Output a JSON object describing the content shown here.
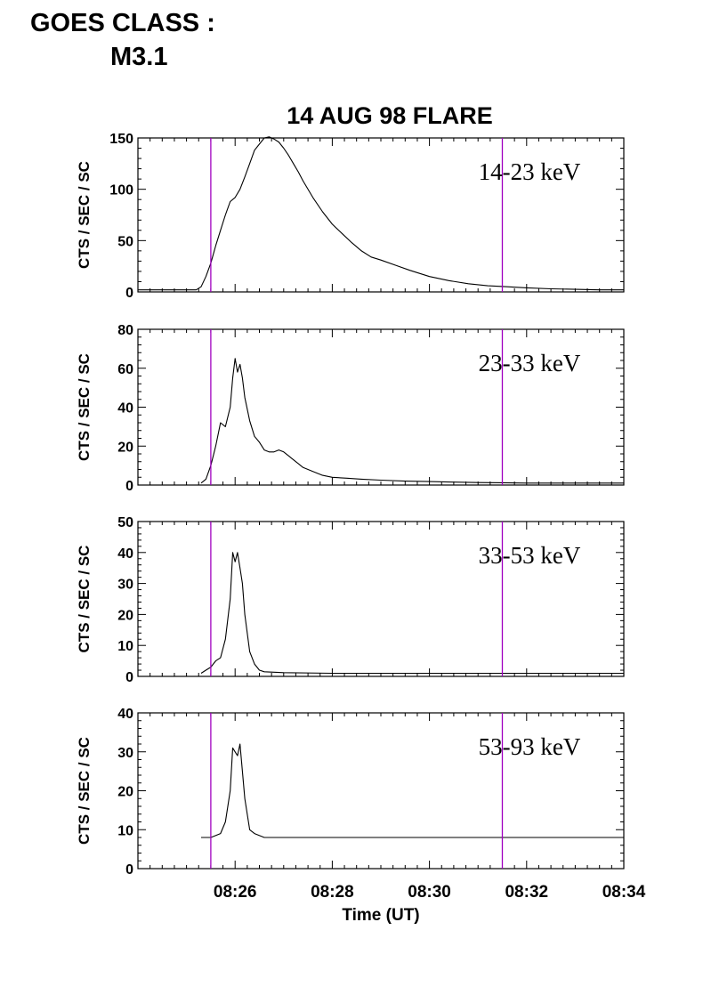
{
  "header": {
    "line1": "GOES CLASS :",
    "line2": "M3.1"
  },
  "chart_data": {
    "type": "line",
    "title": "14 AUG 98 FLARE",
    "xlabel": "Time (UT)",
    "ylabel": "CTS / SEC / SC",
    "x_unit": "minutes past 08:00 UT",
    "xlim": [
      24.0,
      34.0
    ],
    "x_ticks": [
      26,
      28,
      30,
      32,
      34
    ],
    "x_tick_labels": [
      "08:26",
      "08:28",
      "08:30",
      "08:32",
      "08:34"
    ],
    "marker_lines_x": [
      25.5,
      31.5
    ],
    "marker_color": "#a000c0",
    "line_color": "#000000",
    "panels": [
      {
        "label": "14-23 keV",
        "ylim": [
          0,
          150
        ],
        "y_ticks": [
          0,
          50,
          100,
          150
        ],
        "series": {
          "x": [
            24.0,
            25.2,
            25.3,
            25.4,
            25.5,
            25.6,
            25.7,
            25.8,
            25.9,
            26.0,
            26.1,
            26.2,
            26.3,
            26.4,
            26.5,
            26.6,
            26.7,
            26.8,
            26.9,
            27.0,
            27.1,
            27.2,
            27.3,
            27.4,
            27.6,
            27.8,
            28.0,
            28.2,
            28.4,
            28.6,
            28.8,
            29.0,
            29.3,
            29.6,
            30.0,
            30.4,
            30.8,
            31.2,
            31.6,
            32.0,
            32.5,
            33.0,
            33.5,
            34.0
          ],
          "y": [
            2,
            2,
            5,
            15,
            28,
            45,
            60,
            75,
            88,
            92,
            100,
            112,
            125,
            138,
            144,
            150,
            151,
            149,
            146,
            140,
            133,
            125,
            117,
            108,
            92,
            78,
            66,
            57,
            48,
            40,
            34,
            31,
            26,
            21,
            15,
            11,
            8,
            6,
            5,
            4,
            3,
            2.5,
            2,
            2
          ]
        }
      },
      {
        "label": "23-33 keV",
        "ylim": [
          0,
          80
        ],
        "y_ticks": [
          0,
          20,
          40,
          60,
          80
        ],
        "series": {
          "x": [
            25.3,
            25.4,
            25.5,
            25.6,
            25.7,
            25.8,
            25.9,
            25.95,
            26.0,
            26.05,
            26.1,
            26.15,
            26.2,
            26.3,
            26.4,
            26.5,
            26.6,
            26.7,
            26.8,
            26.9,
            27.0,
            27.1,
            27.2,
            27.3,
            27.4,
            27.6,
            27.8,
            28.0,
            28.3,
            28.6,
            29.0,
            29.5,
            30.0,
            30.5,
            31.0,
            31.5,
            32.0,
            32.5,
            33.0,
            33.5,
            34.0
          ],
          "y": [
            1,
            3,
            10,
            20,
            32,
            30,
            40,
            55,
            65,
            58,
            62,
            55,
            45,
            33,
            25,
            22,
            18,
            17,
            17,
            18,
            17,
            15,
            13,
            11,
            9,
            7,
            5,
            4,
            3.5,
            3,
            2.5,
            2,
            1.8,
            1.5,
            1.3,
            1.2,
            1,
            1,
            1,
            1,
            1
          ]
        }
      },
      {
        "label": "33-53 keV",
        "ylim": [
          0,
          50
        ],
        "y_ticks": [
          0,
          10,
          20,
          30,
          40,
          50
        ],
        "series": {
          "x": [
            25.3,
            25.4,
            25.5,
            25.6,
            25.7,
            25.8,
            25.9,
            25.95,
            26.0,
            26.05,
            26.1,
            26.15,
            26.2,
            26.3,
            26.4,
            26.5,
            26.6,
            27.0,
            28.0,
            29.0,
            30.0,
            31.0,
            32.0,
            33.0,
            34.0
          ],
          "y": [
            1,
            2,
            3,
            5,
            6,
            12,
            25,
            40,
            37,
            40,
            35,
            30,
            20,
            8,
            4,
            2,
            1.5,
            1.2,
            1,
            1,
            1,
            1,
            1,
            1,
            1
          ]
        }
      },
      {
        "label": "53-93 keV",
        "ylim": [
          0,
          40
        ],
        "y_ticks": [
          0,
          10,
          20,
          30,
          40
        ],
        "series": {
          "x": [
            25.3,
            25.5,
            25.7,
            25.8,
            25.9,
            25.95,
            26.0,
            26.05,
            26.1,
            26.15,
            26.2,
            26.3,
            26.4,
            26.6,
            27.0,
            28.0,
            29.0,
            30.0,
            31.0,
            32.0,
            33.0,
            34.0
          ],
          "y": [
            8,
            8,
            9,
            12,
            20,
            31,
            30,
            29,
            32,
            25,
            18,
            10,
            9,
            8,
            8,
            8,
            8,
            8,
            8,
            8,
            8,
            8
          ]
        }
      }
    ]
  }
}
